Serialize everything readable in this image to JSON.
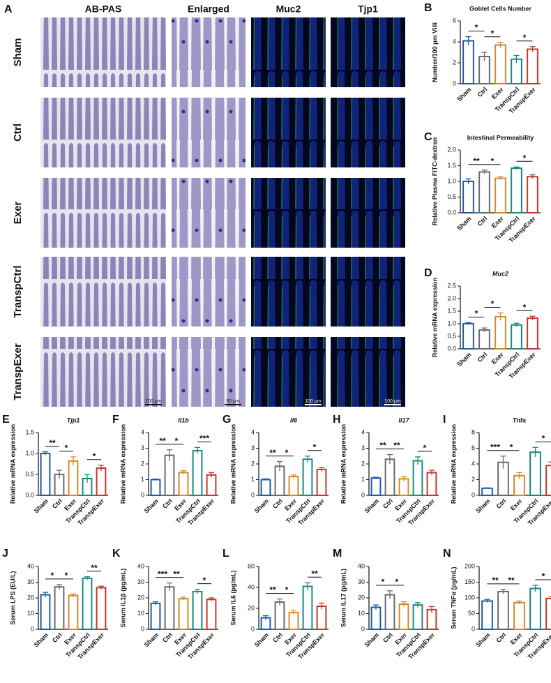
{
  "panel_a": {
    "letter": "A",
    "columns": [
      "AB-PAS",
      "Enlarged",
      "Muc2",
      "Tjp1"
    ],
    "rows": [
      "Sham",
      "Ctrl",
      "Exer",
      "TranspCtrl",
      "TranspExer"
    ],
    "scale_bars": [
      "200 μm",
      "50 μm",
      "100 μm",
      "100 μm"
    ]
  },
  "chart_data": [
    {
      "type": "bar",
      "letter": "B",
      "title": "Goblet Cells Number",
      "ylabel": "Number/100 μm Villi",
      "categories": [
        "Sham",
        "Ctrl",
        "Exer",
        "TranspCtrl",
        "TranspExer"
      ],
      "colors": [
        "#1f5aa6",
        "#6b6b6b",
        "#d4892c",
        "#1a8a80",
        "#c0392b"
      ],
      "values": [
        4.1,
        2.6,
        3.7,
        2.35,
        3.3
      ],
      "errors": [
        0.4,
        0.4,
        0.25,
        0.35,
        0.25
      ],
      "ylim": [
        0,
        6
      ],
      "yticks": [
        0,
        2,
        4,
        6
      ],
      "significance": [
        {
          "from": 0,
          "to": 1,
          "label": "*"
        },
        {
          "from": 1,
          "to": 2,
          "label": "*"
        },
        {
          "from": 3,
          "to": 4,
          "label": "*"
        }
      ]
    },
    {
      "type": "bar",
      "letter": "C",
      "title": "Intestinal Permeability",
      "ylabel": "Relative Plasma FITC-dextran",
      "categories": [
        "Sham",
        "Ctrl",
        "Exer",
        "TranspCtrl",
        "TranspExer"
      ],
      "colors": [
        "#1f5aa6",
        "#6b6b6b",
        "#d4892c",
        "#1a8a80",
        "#c0392b"
      ],
      "values": [
        1.0,
        1.3,
        1.1,
        1.42,
        1.15
      ],
      "errors": [
        0.08,
        0.06,
        0.05,
        0.04,
        0.06
      ],
      "ylim": [
        0,
        2
      ],
      "yticks": [
        {
          "value": 0,
          "label": "0.0"
        },
        0.5,
        {
          "value": 1,
          "label": "1.0"
        },
        1.5,
        {
          "value": 2,
          "label": "2.0"
        }
      ],
      "significance": [
        {
          "from": 0,
          "to": 1,
          "label": "**"
        },
        {
          "from": 1,
          "to": 2,
          "label": "*"
        },
        {
          "from": 3,
          "to": 4,
          "label": "*"
        }
      ]
    },
    {
      "type": "bar",
      "letter": "D",
      "title": "Muc2",
      "italic_title": true,
      "ylabel": "Relative mRNA expression",
      "categories": [
        "Sham",
        "Ctrl",
        "Exer",
        "TranspCtrl",
        "TranspExer"
      ],
      "colors": [
        "#1f5aa6",
        "#6b6b6b",
        "#d4892c",
        "#1a8a80",
        "#c0392b"
      ],
      "values": [
        1.0,
        0.75,
        1.28,
        0.95,
        1.22
      ],
      "errors": [
        0.04,
        0.08,
        0.15,
        0.07,
        0.08
      ],
      "ylim": [
        0,
        2.5
      ],
      "yticks": [
        {
          "value": 0,
          "label": "0.0"
        },
        0.5,
        {
          "value": 1,
          "label": "1.0"
        },
        1.5,
        {
          "value": 2,
          "label": "2.0"
        },
        2.5
      ],
      "significance": [
        {
          "from": 0,
          "to": 1,
          "label": "*"
        },
        {
          "from": 1,
          "to": 2,
          "label": "*"
        },
        {
          "from": 3,
          "to": 4,
          "label": "*"
        }
      ]
    },
    {
      "type": "bar",
      "letter": "E",
      "title": "Tjp1",
      "italic_title": true,
      "ylabel": "Relative mRNA expression",
      "categories": [
        "Sham",
        "Ctrl",
        "Exer",
        "TranspCtrl",
        "TranspExer"
      ],
      "colors": [
        "#1f5aa6",
        "#6b6b6b",
        "#d4892c",
        "#1a8a80",
        "#c0392b"
      ],
      "values": [
        1.0,
        0.5,
        0.82,
        0.4,
        0.65
      ],
      "errors": [
        0.04,
        0.1,
        0.1,
        0.1,
        0.07
      ],
      "ylim": [
        0,
        1.5
      ],
      "yticks": [
        {
          "value": 0,
          "label": "0.0"
        },
        0.5,
        {
          "value": 1,
          "label": "1.0"
        },
        1.5
      ],
      "significance": [
        {
          "from": 0,
          "to": 1,
          "label": "**"
        },
        {
          "from": 1,
          "to": 2,
          "label": "*"
        },
        {
          "from": 3,
          "to": 4,
          "label": "*"
        }
      ]
    },
    {
      "type": "bar",
      "letter": "F",
      "title": "Il1b",
      "italic_title": true,
      "ylabel": "Relative mRNA expression",
      "categories": [
        "Sham",
        "Ctrl",
        "Exer",
        "TranspCtrl",
        "TranspExer"
      ],
      "colors": [
        "#1f5aa6",
        "#6b6b6b",
        "#d4892c",
        "#1a8a80",
        "#c0392b"
      ],
      "values": [
        1.0,
        2.55,
        1.45,
        2.85,
        1.3
      ],
      "errors": [
        0.04,
        0.35,
        0.12,
        0.2,
        0.15
      ],
      "ylim": [
        0,
        4
      ],
      "yticks": [
        0,
        1,
        2,
        3,
        4
      ],
      "significance": [
        {
          "from": 0,
          "to": 1,
          "label": "**"
        },
        {
          "from": 1,
          "to": 2,
          "label": "*"
        },
        {
          "from": 3,
          "to": 4,
          "label": "***"
        }
      ]
    },
    {
      "type": "bar",
      "letter": "G",
      "title": "Il6",
      "italic_title": true,
      "ylabel": "Relative mRNA expression",
      "categories": [
        "Sham",
        "Ctrl",
        "Exer",
        "TranspCtrl",
        "TranspExer"
      ],
      "colors": [
        "#1f5aa6",
        "#6b6b6b",
        "#d4892c",
        "#1a8a80",
        "#c0392b"
      ],
      "values": [
        1.0,
        1.85,
        1.2,
        2.3,
        1.65
      ],
      "errors": [
        0.05,
        0.3,
        0.1,
        0.2,
        0.12
      ],
      "ylim": [
        0,
        4
      ],
      "yticks": [
        0,
        1,
        2,
        3,
        4
      ],
      "significance": [
        {
          "from": 0,
          "to": 1,
          "label": "**"
        },
        {
          "from": 1,
          "to": 2,
          "label": "*"
        },
        {
          "from": 3,
          "to": 4,
          "label": "*"
        }
      ]
    },
    {
      "type": "bar",
      "letter": "H",
      "title": "Il17",
      "italic_title": true,
      "ylabel": "Relative mRNA expression",
      "categories": [
        "Sham",
        "Ctrl",
        "Exer",
        "TranspCtrl",
        "TranspExer"
      ],
      "colors": [
        "#1f5aa6",
        "#6b6b6b",
        "#d4892c",
        "#1a8a80",
        "#c0392b"
      ],
      "values": [
        1.1,
        2.3,
        1.05,
        2.2,
        1.45
      ],
      "errors": [
        0.05,
        0.3,
        0.15,
        0.25,
        0.15
      ],
      "ylim": [
        0,
        4
      ],
      "yticks": [
        0,
        1,
        2,
        3,
        4
      ],
      "significance": [
        {
          "from": 0,
          "to": 1,
          "label": "**"
        },
        {
          "from": 1,
          "to": 2,
          "label": "**"
        },
        {
          "from": 3,
          "to": 4,
          "label": "*"
        }
      ]
    },
    {
      "type": "bar",
      "letter": "I",
      "title": "Tnfa",
      "italic_title": true,
      "ylabel": "Relative mRNA expression",
      "categories": [
        "Sham",
        "Ctrl",
        "Exer",
        "TranspCtrl",
        "TranspExer"
      ],
      "colors": [
        "#1f5aa6",
        "#6b6b6b",
        "#d4892c",
        "#1a8a80",
        "#c0392b"
      ],
      "values": [
        0.9,
        4.2,
        2.5,
        5.5,
        3.8
      ],
      "errors": [
        0.05,
        0.8,
        0.4,
        0.6,
        0.45
      ],
      "ylim": [
        0,
        8
      ],
      "yticks": [
        0,
        2,
        4,
        6,
        8
      ],
      "significance": [
        {
          "from": 0,
          "to": 1,
          "label": "***"
        },
        {
          "from": 1,
          "to": 2,
          "label": "*"
        },
        {
          "from": 3,
          "to": 4,
          "label": "*"
        }
      ]
    },
    {
      "type": "bar",
      "letter": "J",
      "ylabel": "Serum LPS (EU/L)",
      "categories": [
        "Sham",
        "Ctrl",
        "Exer",
        "TranspCtrl",
        "TranspExer"
      ],
      "colors": [
        "#1f5aa6",
        "#6b6b6b",
        "#d4892c",
        "#1a8a80",
        "#c0392b"
      ],
      "values": [
        22,
        27,
        21.5,
        32.5,
        26.5
      ],
      "errors": [
        1.5,
        1.5,
        1,
        1,
        1
      ],
      "ylim": [
        0,
        40
      ],
      "yticks": [
        0,
        10,
        20,
        30,
        40
      ],
      "significance": [
        {
          "from": 0,
          "to": 1,
          "label": "*"
        },
        {
          "from": 1,
          "to": 2,
          "label": "*"
        },
        {
          "from": 3,
          "to": 4,
          "label": "**"
        }
      ]
    },
    {
      "type": "bar",
      "letter": "K",
      "ylabel": "Serum IL1β (pg/mL)",
      "categories": [
        "Sham",
        "Ctrl",
        "Exer",
        "TranspCtrl",
        "TranspExer"
      ],
      "colors": [
        "#1f5aa6",
        "#6b6b6b",
        "#d4892c",
        "#1a8a80",
        "#c0392b"
      ],
      "values": [
        16.5,
        27,
        19.5,
        24,
        19
      ],
      "errors": [
        1,
        2.5,
        1,
        1.5,
        1
      ],
      "ylim": [
        0,
        40
      ],
      "yticks": [
        0,
        10,
        20,
        30,
        40
      ],
      "significance": [
        {
          "from": 0,
          "to": 1,
          "label": "***"
        },
        {
          "from": 1,
          "to": 2,
          "label": "**"
        },
        {
          "from": 3,
          "to": 4,
          "label": "*"
        }
      ]
    },
    {
      "type": "bar",
      "letter": "L",
      "ylabel": "Serum IL6 (pg/mL)",
      "categories": [
        "Sham",
        "Ctrl",
        "Exer",
        "TranspCtrl",
        "TranspExer"
      ],
      "colors": [
        "#1f5aa6",
        "#6b6b6b",
        "#d4892c",
        "#1a8a80",
        "#c0392b"
      ],
      "values": [
        11,
        26,
        16,
        41,
        22
      ],
      "errors": [
        2,
        3,
        2,
        3.5,
        3
      ],
      "ylim": [
        0,
        60
      ],
      "yticks": [
        0,
        20,
        40,
        60
      ],
      "significance": [
        {
          "from": 0,
          "to": 1,
          "label": "**"
        },
        {
          "from": 1,
          "to": 2,
          "label": "*"
        },
        {
          "from": 3,
          "to": 4,
          "label": "**"
        }
      ]
    },
    {
      "type": "bar",
      "letter": "M",
      "ylabel": "Serum IL17 (pg/mL)",
      "categories": [
        "Sham",
        "Ctrl",
        "Exer",
        "TranspCtrl",
        "TranspExer"
      ],
      "colors": [
        "#1f5aa6",
        "#6b6b6b",
        "#d4892c",
        "#1a8a80",
        "#c0392b"
      ],
      "values": [
        14,
        22,
        16,
        15.5,
        12.5
      ],
      "errors": [
        1.5,
        2.5,
        1.5,
        1.5,
        2
      ],
      "ylim": [
        0,
        40
      ],
      "yticks": [
        0,
        10,
        20,
        30,
        40
      ],
      "significance": [
        {
          "from": 0,
          "to": 1,
          "label": "*"
        },
        {
          "from": 1,
          "to": 2,
          "label": "*"
        }
      ]
    },
    {
      "type": "bar",
      "letter": "N",
      "ylabel": "Serum TNFα (pg/mL)",
      "categories": [
        "Sham",
        "Ctrl",
        "Exer",
        "TranspCtrl",
        "TranspExer"
      ],
      "colors": [
        "#1f5aa6",
        "#6b6b6b",
        "#d4892c",
        "#1a8a80",
        "#c0392b"
      ],
      "values": [
        90,
        120,
        85,
        130,
        98
      ],
      "errors": [
        5,
        7,
        5,
        10,
        6
      ],
      "ylim": [
        0,
        200
      ],
      "yticks": [
        0,
        50,
        100,
        150,
        200
      ],
      "significance": [
        {
          "from": 0,
          "to": 1,
          "label": "**"
        },
        {
          "from": 1,
          "to": 2,
          "label": "**"
        },
        {
          "from": 3,
          "to": 4,
          "label": "*"
        }
      ]
    }
  ]
}
